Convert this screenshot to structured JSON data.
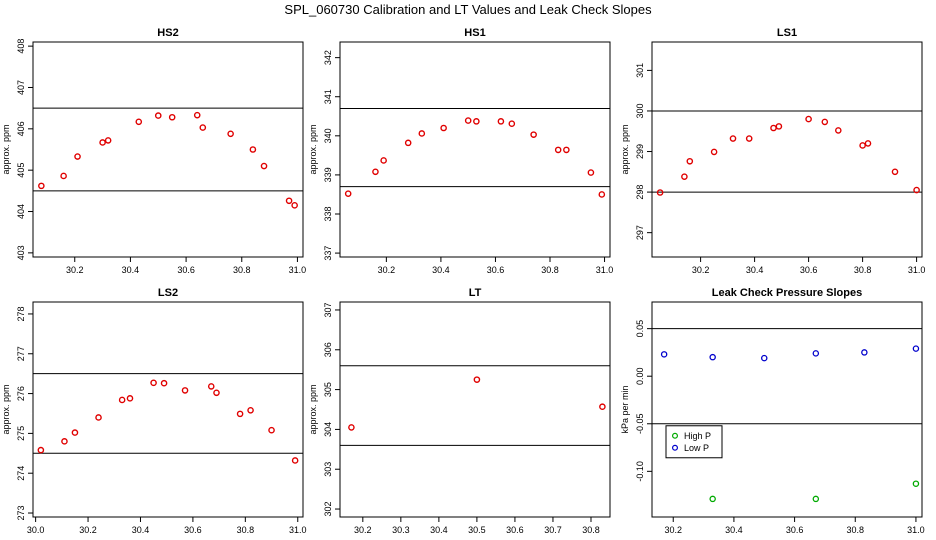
{
  "figure_title": "SPL_060730  Calibration and LT Values and Leak Check Slopes",
  "colors": {
    "points": "#e00000",
    "high_p": "#00aa00",
    "low_p": "#0000cc",
    "lines": "#000000"
  },
  "chart_data": [
    {
      "type": "scatter",
      "title": "HS2",
      "xlabel": "",
      "ylabel": "approx. ppm",
      "xlim": [
        30.05,
        31.02
      ],
      "ylim": [
        402.9,
        408.1
      ],
      "xticks": [
        "30.2",
        "30.4",
        "30.6",
        "30.8",
        "31.0"
      ],
      "yticks": [
        "403",
        "404",
        "405",
        "406",
        "407",
        "408"
      ],
      "hlines": [
        404.5,
        406.5
      ],
      "x": [
        30.08,
        30.16,
        30.21,
        30.3,
        30.32,
        30.43,
        30.5,
        30.55,
        30.64,
        30.66,
        30.76,
        30.84,
        30.88,
        30.97,
        30.99
      ],
      "y": [
        404.62,
        404.86,
        405.33,
        405.67,
        405.72,
        406.17,
        406.32,
        406.28,
        406.33,
        406.03,
        405.88,
        405.5,
        405.1,
        404.26,
        404.15
      ]
    },
    {
      "type": "scatter",
      "title": "HS1",
      "xlabel": "",
      "ylabel": "approx. ppm",
      "xlim": [
        30.03,
        31.02
      ],
      "ylim": [
        336.9,
        342.4
      ],
      "xticks": [
        "30.2",
        "30.4",
        "30.6",
        "30.8",
        "31.0"
      ],
      "yticks": [
        "337",
        "338",
        "339",
        "340",
        "341",
        "342"
      ],
      "hlines": [
        338.7,
        340.7
      ],
      "x": [
        30.06,
        30.16,
        30.19,
        30.28,
        30.33,
        30.41,
        30.5,
        30.53,
        30.62,
        30.66,
        30.74,
        30.83,
        30.86,
        30.95,
        30.99
      ],
      "y": [
        338.52,
        339.08,
        339.37,
        339.82,
        340.06,
        340.2,
        340.39,
        340.37,
        340.37,
        340.31,
        340.03,
        339.64,
        339.64,
        339.06,
        338.5
      ]
    },
    {
      "type": "scatter",
      "title": "LS1",
      "xlabel": "",
      "ylabel": "approx. ppm",
      "xlim": [
        30.02,
        31.02
      ],
      "ylim": [
        296.4,
        301.7
      ],
      "xticks": [
        "30.2",
        "30.4",
        "30.6",
        "30.8",
        "31.0"
      ],
      "yticks": [
        "297",
        "298",
        "299",
        "300",
        "301"
      ],
      "hlines": [
        298.0,
        300.0
      ],
      "x": [
        30.05,
        30.14,
        30.16,
        30.25,
        30.32,
        30.38,
        30.47,
        30.49,
        30.6,
        30.66,
        30.71,
        30.8,
        30.82,
        30.92,
        31.0
      ],
      "y": [
        297.99,
        298.38,
        298.76,
        298.99,
        299.32,
        299.32,
        299.58,
        299.62,
        299.8,
        299.73,
        299.52,
        299.15,
        299.2,
        298.5,
        298.05
      ]
    },
    {
      "type": "scatter",
      "title": "LS2",
      "xlabel": "",
      "ylabel": "approx. ppm",
      "xlim": [
        29.99,
        31.02
      ],
      "ylim": [
        272.9,
        278.3
      ],
      "xticks": [
        "30.0",
        "30.2",
        "30.4",
        "30.6",
        "30.8",
        "31.0"
      ],
      "yticks": [
        "273",
        "274",
        "275",
        "276",
        "277",
        "278"
      ],
      "hlines": [
        274.5,
        276.5
      ],
      "x": [
        30.02,
        30.11,
        30.15,
        30.24,
        30.33,
        30.36,
        30.45,
        30.49,
        30.57,
        30.67,
        30.69,
        30.78,
        30.82,
        30.9,
        30.99
      ],
      "y": [
        274.58,
        274.8,
        275.02,
        275.4,
        275.84,
        275.88,
        276.27,
        276.26,
        276.08,
        276.18,
        276.02,
        275.49,
        275.58,
        275.08,
        274.32
      ]
    },
    {
      "type": "scatter",
      "title": "LT",
      "xlabel": "",
      "ylabel": "approx. ppm",
      "xlim": [
        30.14,
        30.85
      ],
      "ylim": [
        301.8,
        307.2
      ],
      "xticks": [
        "30.2",
        "30.3",
        "30.4",
        "30.5",
        "30.6",
        "30.7",
        "30.8"
      ],
      "yticks": [
        "302",
        "303",
        "304",
        "305",
        "306",
        "307"
      ],
      "hlines": [
        303.6,
        305.6
      ],
      "x": [
        30.17,
        30.5,
        30.83
      ],
      "y": [
        304.05,
        305.25,
        304.57
      ]
    },
    {
      "type": "scatter",
      "title": "Leak Check Pressure Slopes",
      "xlabel": "",
      "ylabel": "kPa per min",
      "xlim": [
        30.13,
        31.02
      ],
      "ylim": [
        -0.148,
        0.078
      ],
      "xticks": [
        "30.2",
        "30.4",
        "30.6",
        "30.8",
        "31.0"
      ],
      "yticks": [
        "-0.10",
        "-0.05",
        "0.00",
        "0.05"
      ],
      "hlines": [
        -0.05,
        0.05
      ],
      "legend": {
        "placement": "lower-left",
        "entries": [
          "High P",
          "Low P"
        ]
      },
      "series": [
        {
          "name": "High P",
          "x": [
            30.33,
            30.67,
            31.0
          ],
          "y": [
            -0.129,
            -0.129,
            -0.113
          ]
        },
        {
          "name": "Low P",
          "x": [
            30.17,
            30.33,
            30.5,
            30.67,
            30.83,
            31.0
          ],
          "y": [
            0.023,
            0.02,
            0.019,
            0.024,
            0.025,
            0.029
          ]
        }
      ]
    }
  ]
}
